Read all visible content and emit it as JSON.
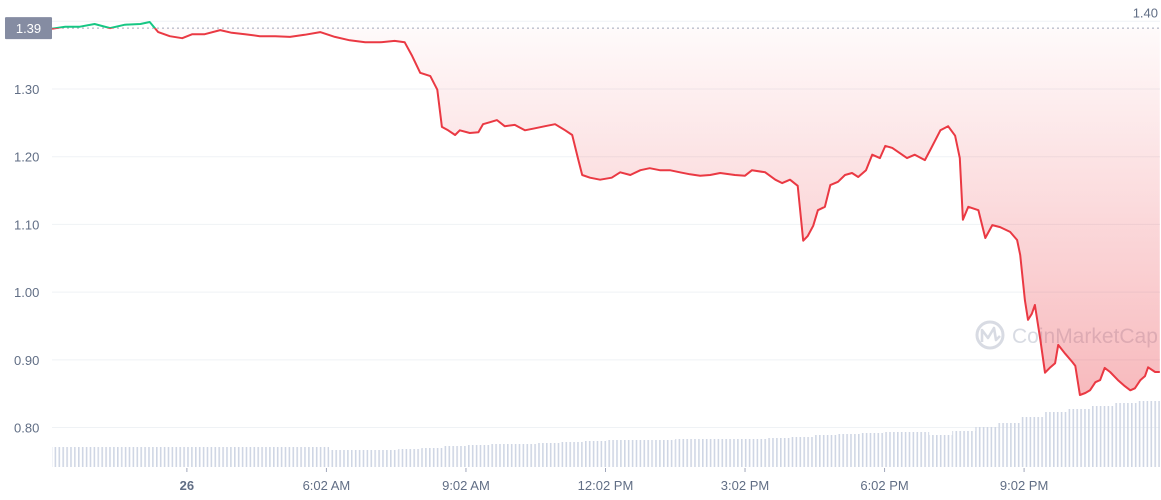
{
  "chart_data": {
    "type": "line",
    "title": "",
    "xlabel": "",
    "ylabel": "",
    "ylim": [
      0.78,
      1.4
    ],
    "yticks": [
      "0.80",
      "0.90",
      "1.00",
      "1.10",
      "1.20",
      "1.30",
      "1.40"
    ],
    "xticks": [
      {
        "t": "03:02",
        "label": "26",
        "bold": true
      },
      {
        "t": "06:02",
        "label": "6:02 AM"
      },
      {
        "t": "09:02",
        "label": "9:02 AM"
      },
      {
        "t": "12:02",
        "label": "12:02 PM"
      },
      {
        "t": "15:02",
        "label": "3:02 PM"
      },
      {
        "t": "18:02",
        "label": "6:02 PM"
      },
      {
        "t": "21:02",
        "label": "9:02 PM"
      }
    ],
    "grid": true,
    "baseline": {
      "value": 1.39,
      "label": "1.39"
    },
    "colors": {
      "up": "#16c784",
      "down": "#ea3943",
      "volume": "#cfd6e4",
      "baseline_label_bg": "#858ca2"
    },
    "watermark": "CoinMarketCap",
    "price": {
      "x": [
        "00:08",
        "00:25",
        "00:44",
        "01:03",
        "01:23",
        "01:42",
        "02:02",
        "02:14",
        "02:25",
        "02:40",
        "02:56",
        "03:09",
        "03:25",
        "03:45",
        "04:00",
        "04:17",
        "04:36",
        "04:56",
        "05:15",
        "05:34",
        "05:54",
        "06:13",
        "06:32",
        "06:52",
        "07:11",
        "07:30",
        "07:43",
        "07:52",
        "08:03",
        "08:16",
        "08:25",
        "08:31",
        "08:39",
        "08:48",
        "08:54",
        "09:07",
        "09:18",
        "09:24",
        "09:33",
        "09:42",
        "09:52",
        "10:05",
        "10:18",
        "10:31",
        "10:44",
        "10:57",
        "11:10",
        "11:19",
        "11:27",
        "11:32",
        "11:42",
        "11:55",
        "12:10",
        "12:21",
        "12:34",
        "12:47",
        "12:59",
        "13:12",
        "13:25",
        "13:38",
        "13:51",
        "14:04",
        "14:17",
        "14:30",
        "14:49",
        "15:02",
        "15:11",
        "15:28",
        "15:41",
        "15:50",
        "16:00",
        "16:10",
        "16:17",
        "16:23",
        "16:30",
        "16:36",
        "16:45",
        "16:52",
        "17:02",
        "17:11",
        "17:20",
        "17:28",
        "17:38",
        "17:46",
        "17:56",
        "18:03",
        "18:12",
        "18:22",
        "18:31",
        "18:41",
        "18:54",
        "19:01",
        "19:14",
        "19:24",
        "19:33",
        "19:39",
        "19:43",
        "19:50",
        "20:03",
        "20:12",
        "20:21",
        "20:31",
        "20:44",
        "20:53",
        "20:57",
        "21:03",
        "21:07",
        "21:12",
        "21:16",
        "21:23",
        "21:29",
        "21:35",
        "21:42",
        "21:46",
        "21:55",
        "22:04",
        "22:08",
        "22:14",
        "22:21",
        "22:27",
        "22:34",
        "22:40",
        "22:46",
        "22:53",
        "23:03",
        "23:12",
        "23:19",
        "23:25",
        "23:32",
        "23:38",
        "23:42",
        "23:51",
        "23:57"
      ],
      "y": [
        1.389,
        1.392,
        1.392,
        1.396,
        1.39,
        1.395,
        1.396,
        1.399,
        1.384,
        1.378,
        1.375,
        1.381,
        1.381,
        1.387,
        1.383,
        1.381,
        1.378,
        1.378,
        1.377,
        1.38,
        1.384,
        1.377,
        1.372,
        1.369,
        1.369,
        1.371,
        1.369,
        1.35,
        1.324,
        1.319,
        1.299,
        1.244,
        1.239,
        1.232,
        1.239,
        1.235,
        1.236,
        1.248,
        1.251,
        1.254,
        1.245,
        1.247,
        1.239,
        1.242,
        1.245,
        1.248,
        1.239,
        1.232,
        1.195,
        1.173,
        1.169,
        1.166,
        1.169,
        1.177,
        1.173,
        1.18,
        1.183,
        1.18,
        1.18,
        1.177,
        1.174,
        1.172,
        1.173,
        1.176,
        1.173,
        1.172,
        1.18,
        1.177,
        1.166,
        1.161,
        1.166,
        1.157,
        1.076,
        1.083,
        1.098,
        1.121,
        1.126,
        1.158,
        1.163,
        1.173,
        1.176,
        1.17,
        1.18,
        1.203,
        1.198,
        1.216,
        1.213,
        1.205,
        1.198,
        1.203,
        1.195,
        1.21,
        1.239,
        1.245,
        1.231,
        1.198,
        1.107,
        1.126,
        1.121,
        1.08,
        1.099,
        1.096,
        1.089,
        1.077,
        1.055,
        0.988,
        0.959,
        0.968,
        0.981,
        0.929,
        0.881,
        0.888,
        0.895,
        0.922,
        0.909,
        0.897,
        0.891,
        0.848,
        0.851,
        0.855,
        0.867,
        0.87,
        0.888,
        0.882,
        0.87,
        0.861,
        0.855,
        0.858,
        0.87,
        0.876,
        0.889,
        0.882,
        0.882
      ]
    },
    "volume_relative": [
      20,
      20,
      20,
      20,
      20,
      20,
      20,
      20,
      20,
      20,
      20,
      20,
      17,
      17,
      17,
      18,
      19,
      21,
      22,
      23,
      23,
      24,
      25,
      26,
      27,
      27,
      27,
      28,
      28,
      28,
      28,
      29,
      30,
      32,
      33,
      34,
      35,
      35,
      32,
      36,
      40,
      44,
      50,
      55,
      58,
      61,
      64,
      66
    ]
  }
}
